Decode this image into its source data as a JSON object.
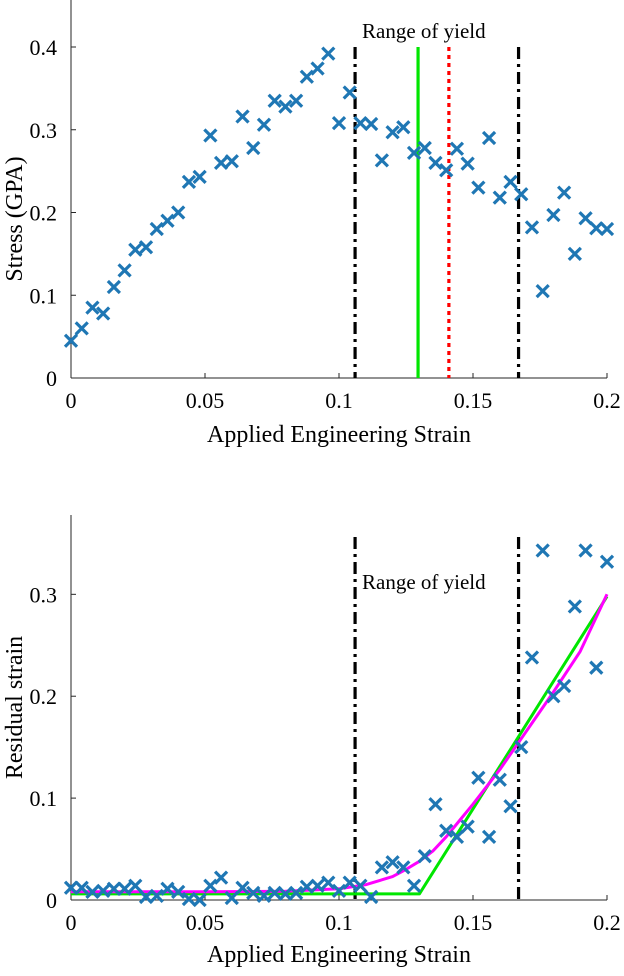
{
  "chart_data": [
    {
      "type": "scatter",
      "xlabel": "Applied Engineering Strain",
      "ylabel": "Stress (GPA)",
      "xlim": [
        0,
        0.2
      ],
      "ylim": [
        0,
        0.4
      ],
      "xticks": [
        0,
        0.05,
        0.1,
        0.15,
        0.2
      ],
      "xtick_labels": [
        "0",
        "0.05",
        "0.1",
        "0.15",
        "0.2"
      ],
      "yticks": [
        0,
        0.1,
        0.2,
        0.3,
        0.4
      ],
      "ytick_labels": [
        "0",
        "0.1",
        "0.2",
        "0.3",
        "0.4"
      ],
      "annotation": "Range of yield",
      "colors": {
        "points": "#1f77b4",
        "yield_bounds": "#000000",
        "green_line": "#00e600",
        "red_line": "#ff0000"
      },
      "series": [
        {
          "name": "data",
          "marker": "x",
          "x": [
            0,
            0.004,
            0.008,
            0.012,
            0.016,
            0.02,
            0.024,
            0.028,
            0.032,
            0.036,
            0.04,
            0.044,
            0.048,
            0.052,
            0.056,
            0.06,
            0.064,
            0.068,
            0.072,
            0.076,
            0.08,
            0.084,
            0.088,
            0.092,
            0.096,
            0.1,
            0.104,
            0.108,
            0.112,
            0.116,
            0.12,
            0.124,
            0.128,
            0.132,
            0.136,
            0.14,
            0.144,
            0.148,
            0.152,
            0.156,
            0.16,
            0.164,
            0.168,
            0.172,
            0.176,
            0.18,
            0.184,
            0.188,
            0.192,
            0.196,
            0.2
          ],
          "y": [
            0.045,
            0.06,
            0.085,
            0.078,
            0.11,
            0.13,
            0.155,
            0.158,
            0.18,
            0.19,
            0.2,
            0.237,
            0.243,
            0.293,
            0.26,
            0.262,
            0.316,
            0.278,
            0.306,
            0.335,
            0.328,
            0.335,
            0.364,
            0.374,
            0.392,
            0.308,
            0.345,
            0.308,
            0.307,
            0.263,
            0.297,
            0.303,
            0.272,
            0.278,
            0.26,
            0.251,
            0.277,
            0.259,
            0.23,
            0.29,
            0.218,
            0.237,
            0.222,
            0.182,
            0.105,
            0.197,
            0.224,
            0.15,
            0.193,
            0.181,
            0.18
          ]
        }
      ],
      "vlines": [
        {
          "name": "yield-lower",
          "x": 0.106,
          "style": "dash-dot",
          "color": "#000000"
        },
        {
          "name": "yield-upper",
          "x": 0.167,
          "style": "dash-dot",
          "color": "#000000"
        },
        {
          "name": "green",
          "x": 0.1295,
          "style": "solid",
          "color": "#00e600"
        },
        {
          "name": "red",
          "x": 0.141,
          "style": "dotted",
          "color": "#ff0000"
        }
      ]
    },
    {
      "type": "scatter",
      "xlabel": "Applied Engineering Strain",
      "ylabel": "Residual strain",
      "xlim": [
        0,
        0.2
      ],
      "ylim": [
        0,
        0.37
      ],
      "xticks": [
        0,
        0.05,
        0.1,
        0.15,
        0.2
      ],
      "xtick_labels": [
        "0",
        "0.05",
        "0.1",
        "0.15",
        "0.2"
      ],
      "yticks": [
        0,
        0.1,
        0.2,
        0.3
      ],
      "ytick_labels": [
        "0",
        "0.1",
        "0.2",
        "0.3"
      ],
      "annotation": "Range of yield",
      "colors": {
        "points": "#1f77b4",
        "yield_bounds": "#000000",
        "green_fit": "#00e600",
        "magenta_fit": "#ff00ff"
      },
      "series": [
        {
          "name": "data",
          "marker": "x",
          "x": [
            0,
            0.004,
            0.008,
            0.012,
            0.016,
            0.02,
            0.024,
            0.028,
            0.032,
            0.036,
            0.04,
            0.044,
            0.048,
            0.052,
            0.056,
            0.06,
            0.064,
            0.068,
            0.072,
            0.076,
            0.08,
            0.084,
            0.088,
            0.092,
            0.096,
            0.1,
            0.104,
            0.108,
            0.112,
            0.116,
            0.12,
            0.124,
            0.128,
            0.132,
            0.136,
            0.14,
            0.144,
            0.148,
            0.152,
            0.156,
            0.16,
            0.164,
            0.168,
            0.172,
            0.176,
            0.18,
            0.184,
            0.188,
            0.192,
            0.196,
            0.2
          ],
          "y": [
            0.012,
            0.012,
            0.008,
            0.009,
            0.011,
            0.011,
            0.014,
            0.003,
            0.004,
            0.011,
            0.008,
            0.001,
            0.0,
            0.014,
            0.022,
            0.002,
            0.012,
            0.007,
            0.004,
            0.007,
            0.006,
            0.007,
            0.013,
            0.014,
            0.017,
            0.009,
            0.017,
            0.014,
            0.003,
            0.032,
            0.037,
            0.032,
            0.014,
            0.043,
            0.094,
            0.068,
            0.062,
            0.072,
            0.12,
            0.062,
            0.118,
            0.092,
            0.15,
            0.238,
            0.343,
            0.2,
            0.21,
            0.288,
            0.343,
            0.228,
            0.332
          ]
        },
        {
          "name": "green-fit",
          "type": "line",
          "color": "#00e600",
          "x": [
            0,
            0.13,
            0.2
          ],
          "y": [
            0.006,
            0.006,
            0.298
          ]
        },
        {
          "name": "magenta-fit",
          "type": "line",
          "color": "#ff00ff",
          "x": [
            0,
            0.05,
            0.08,
            0.1,
            0.11,
            0.12,
            0.125,
            0.13,
            0.135,
            0.14,
            0.145,
            0.15,
            0.16,
            0.17,
            0.18,
            0.19,
            0.2
          ],
          "y": [
            0.008,
            0.008,
            0.0085,
            0.011,
            0.015,
            0.023,
            0.03,
            0.038,
            0.048,
            0.062,
            0.078,
            0.094,
            0.128,
            0.166,
            0.204,
            0.244,
            0.3
          ]
        }
      ],
      "vlines": [
        {
          "name": "yield-lower",
          "x": 0.106,
          "style": "dash-dot",
          "color": "#000000"
        },
        {
          "name": "yield-upper",
          "x": 0.167,
          "style": "dash-dot",
          "color": "#000000"
        }
      ]
    }
  ]
}
